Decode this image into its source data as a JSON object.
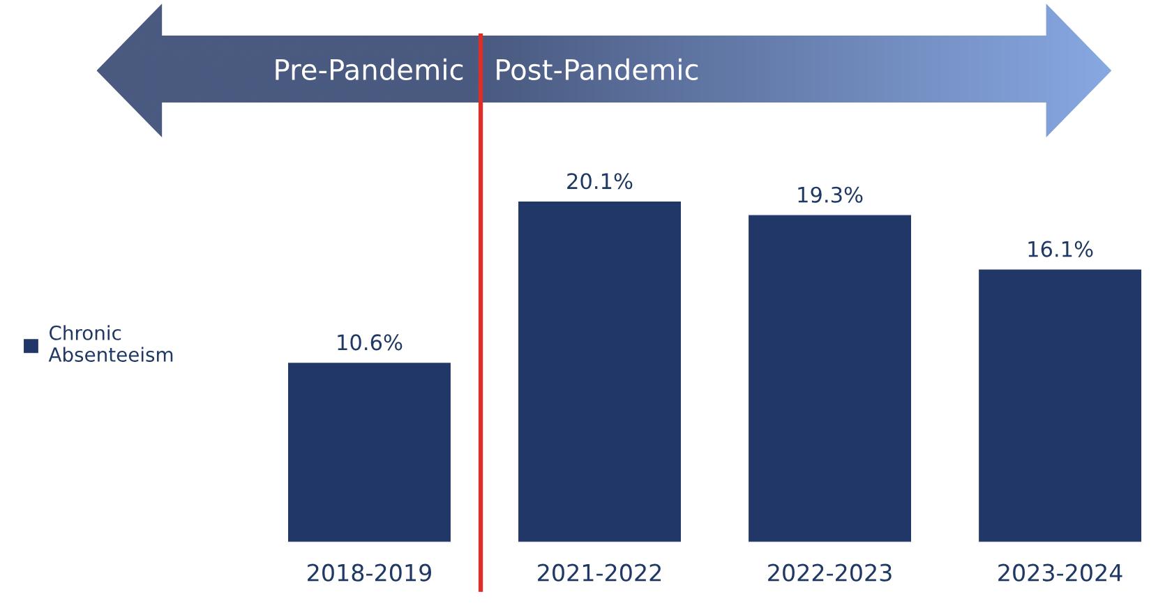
{
  "chart_data": {
    "type": "bar",
    "categories": [
      "2018-2019",
      "2021-2022",
      "2022-2023",
      "2023-2024"
    ],
    "series": [
      {
        "name": "Chronic Absenteeism",
        "color": "#203767",
        "values": [
          10.6,
          20.1,
          19.3,
          16.1
        ],
        "value_labels": [
          "10.6%",
          "20.1%",
          "19.3%",
          "16.1%"
        ]
      }
    ],
    "legend": "left",
    "annotations": [
      "Pre-Pandemic",
      "Post-Pandemic"
    ]
  }
}
